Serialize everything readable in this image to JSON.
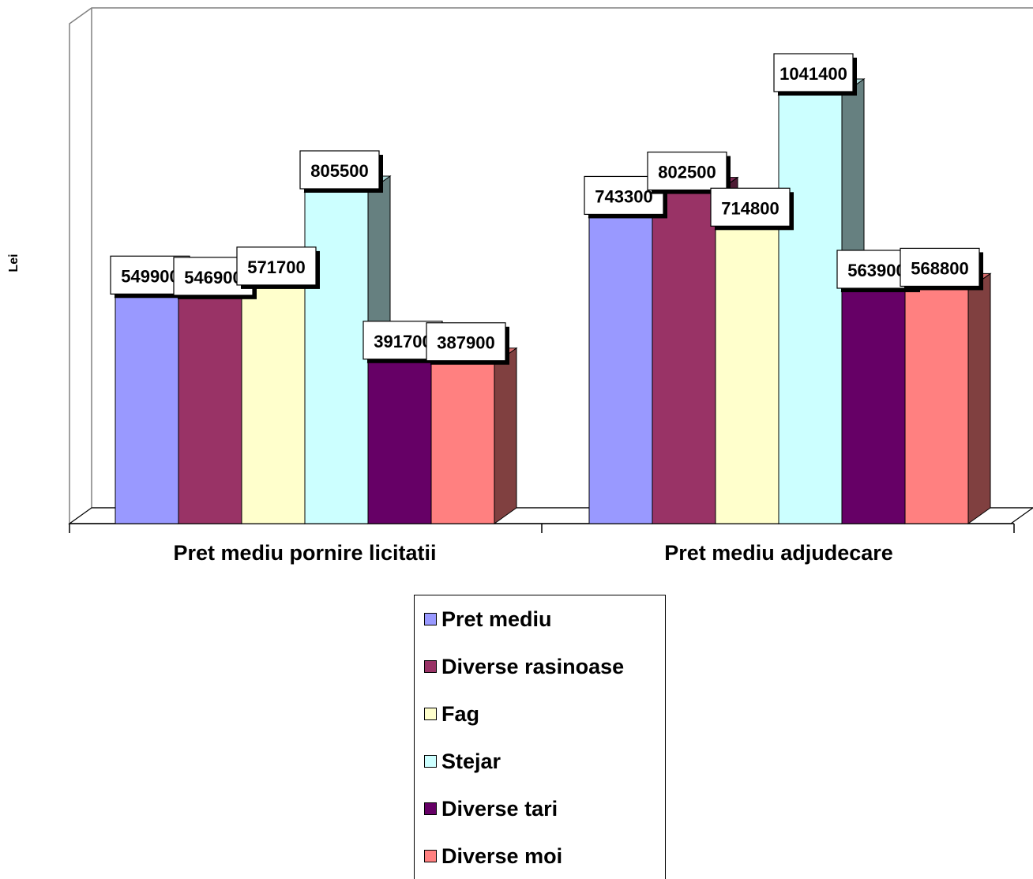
{
  "chart_data": {
    "type": "bar",
    "ylabel": "Lei",
    "categories": [
      "Pret mediu pornire licitatii",
      "Pret mediu adjudecare"
    ],
    "series": [
      {
        "name": "Pret mediu",
        "color": "#9999FF",
        "values": [
          549900,
          743300
        ]
      },
      {
        "name": "Diverse rasinoase",
        "color": "#993366",
        "values": [
          546900,
          802500
        ]
      },
      {
        "name": "Fag",
        "color": "#FFFFCC",
        "values": [
          571700,
          714800
        ]
      },
      {
        "name": "Stejar",
        "color": "#CCFFFF",
        "values": [
          805500,
          1041400
        ]
      },
      {
        "name": "Diverse tari",
        "color": "#660066",
        "values": [
          391700,
          563900
        ]
      },
      {
        "name": "Diverse moi",
        "color": "#FF8080",
        "values": [
          387900,
          568800
        ]
      }
    ],
    "ylim": [
      0,
      1200000
    ],
    "grid": false,
    "legend_position": "bottom"
  }
}
